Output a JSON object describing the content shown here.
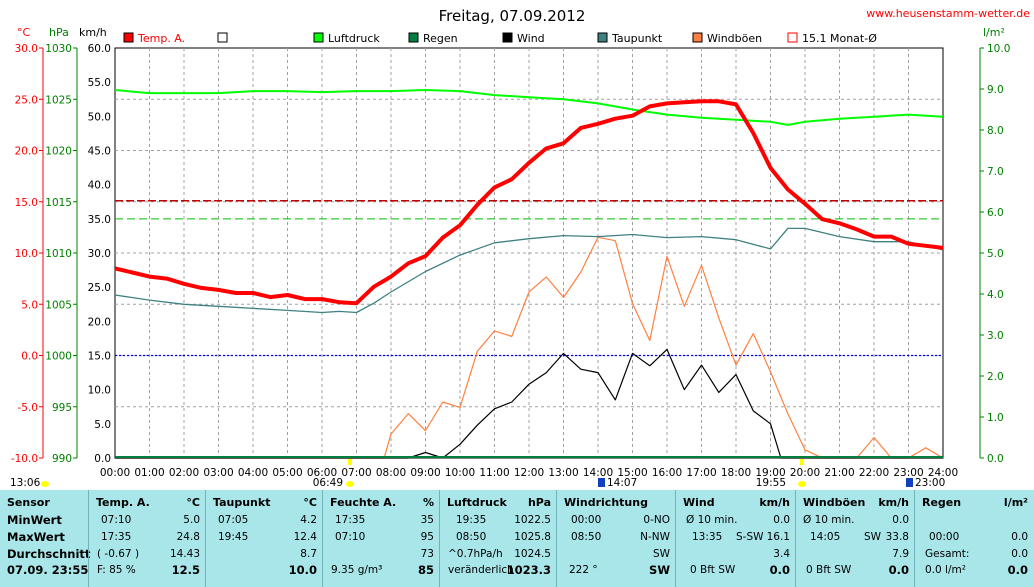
{
  "title": "Freitag, 07.09.2012",
  "website": "www.heusenstamm-wetter.de",
  "axis_units": {
    "left1": "°C",
    "left2": "hPa",
    "left3": "km/h",
    "right": "l/m²"
  },
  "legend": [
    {
      "label": "Temp. A.",
      "color": "#ff0000"
    },
    {
      "label": "",
      "color": "#ffffff"
    },
    {
      "label": "Luftdruck",
      "color": "#00ff00"
    },
    {
      "label": "Regen",
      "color": "#008040"
    },
    {
      "label": "Wind",
      "color": "#000000"
    },
    {
      "label": "Taupunkt",
      "color": "#408080"
    },
    {
      "label": "Windböen",
      "color": "#ff8040"
    },
    {
      "label": "15.1 Monat-Ø",
      "color": "#ff0000"
    }
  ],
  "sun_events": {
    "sunrise_left": "13:06",
    "sunrise": "06:49",
    "max_temp": "14:07",
    "sunset": "19:55",
    "end": "23:00"
  },
  "chart_data": {
    "type": "line",
    "title": "Freitag, 07.09.2012",
    "x_ticks": [
      "00:00",
      "01:00",
      "02:00",
      "03:00",
      "04:00",
      "05:00",
      "06:00",
      "07:00",
      "08:00",
      "09:00",
      "10:00",
      "11:00",
      "12:00",
      "13:00",
      "14:00",
      "15:00",
      "16:00",
      "17:00",
      "18:00",
      "19:00",
      "20:00",
      "21:00",
      "22:00",
      "23:00",
      "24:00"
    ],
    "temp_ticks": [
      "30.0",
      "25.0",
      "20.0",
      "15.0",
      "10.0",
      "5.0",
      "0.0",
      "-5.0",
      "-10.0"
    ],
    "pressure_ticks": [
      "1030",
      "1025",
      "1020",
      "1015",
      "1010",
      "1005",
      "1000",
      "995",
      "990"
    ],
    "wind_ticks": [
      "60.0",
      "55.0",
      "50.0",
      "45.0",
      "40.0",
      "35.0",
      "30.0",
      "25.0",
      "20.0",
      "15.0",
      "10.0",
      "5.0",
      "0.0"
    ],
    "rain_ticks": [
      "10.0",
      "9.0",
      "8.0",
      "7.0",
      "6.0",
      "5.0",
      "4.0",
      "3.0",
      "2.0",
      "1.0",
      "0.0"
    ],
    "ylim_temp": [
      -10,
      30
    ],
    "ylim_pressure": [
      990,
      1030
    ],
    "ylim_wind": [
      0,
      60
    ],
    "ylim_rain": [
      0,
      10
    ],
    "monthly_avg_temp": 15.1,
    "series": [
      {
        "name": "Temp. A.",
        "color": "#ff0000",
        "axis": "temp",
        "x": [
          0,
          0.5,
          1,
          1.5,
          2,
          2.5,
          3,
          3.5,
          4,
          4.5,
          5,
          5.5,
          6,
          6.5,
          7,
          7.5,
          8,
          8.5,
          9,
          9.5,
          10,
          10.5,
          11,
          11.5,
          12,
          12.5,
          13,
          13.5,
          14,
          14.5,
          15,
          15.5,
          16,
          16.5,
          17,
          17.5,
          18,
          18.5,
          19,
          19.5,
          20,
          20.5,
          21,
          21.5,
          22,
          22.5,
          23,
          23.5,
          24
        ],
        "y": [
          8.5,
          8.1,
          7.7,
          7.5,
          7.0,
          6.6,
          6.4,
          6.1,
          6.1,
          5.7,
          5.9,
          5.5,
          5.5,
          5.2,
          5.1,
          6.7,
          7.7,
          9.0,
          9.7,
          11.5,
          12.7,
          14.7,
          16.4,
          17.2,
          18.8,
          20.2,
          20.7,
          22.2,
          22.6,
          23.1,
          23.4,
          24.3,
          24.6,
          24.7,
          24.8,
          24.8,
          24.5,
          21.7,
          18.3,
          16.2,
          14.8,
          13.3,
          12.9,
          12.3,
          11.6,
          11.6,
          10.9,
          10.7,
          10.5
        ]
      },
      {
        "name": "Taupunkt",
        "color": "#408080",
        "axis": "temp",
        "x": [
          0,
          1,
          2,
          3,
          4,
          5,
          6,
          6.5,
          7,
          7.5,
          8,
          9,
          10,
          11,
          12,
          13,
          14,
          15,
          16,
          17,
          18,
          19,
          19.5,
          20,
          21,
          22,
          23,
          24
        ],
        "y": [
          5.9,
          5.4,
          5.0,
          4.8,
          4.6,
          4.4,
          4.2,
          4.3,
          4.2,
          5.1,
          6.2,
          8.2,
          9.8,
          11.0,
          11.4,
          11.7,
          11.6,
          11.8,
          11.5,
          11.6,
          11.3,
          10.4,
          12.4,
          12.4,
          11.6,
          11.1,
          11.1,
          10.3
        ]
      },
      {
        "name": "Luftdruck",
        "color": "#00ff00",
        "axis": "pressure",
        "x": [
          0,
          1,
          2,
          3,
          4,
          5,
          6,
          7,
          8,
          9,
          10,
          11,
          12,
          13,
          14,
          15,
          16,
          17,
          18,
          19,
          19.5,
          20,
          21,
          22,
          23,
          24
        ],
        "y": [
          1025.9,
          1025.6,
          1025.6,
          1025.6,
          1025.8,
          1025.8,
          1025.7,
          1025.8,
          1025.8,
          1025.9,
          1025.8,
          1025.4,
          1025.2,
          1025.0,
          1024.6,
          1024.0,
          1023.5,
          1023.2,
          1023.0,
          1022.8,
          1022.5,
          1022.8,
          1023.1,
          1023.3,
          1023.5,
          1023.3
        ]
      },
      {
        "name": "Wind",
        "color": "#000000",
        "axis": "wind",
        "x": [
          0,
          7.8,
          8.5,
          9,
          9.5,
          10,
          10.5,
          11,
          11.5,
          12,
          12.5,
          13,
          13.5,
          14,
          14.5,
          15,
          15.5,
          16,
          16.5,
          17,
          17.5,
          18,
          18.5,
          19,
          19.3,
          24
        ],
        "y": [
          0,
          0,
          0,
          0.8,
          0,
          2.0,
          4.8,
          7.2,
          8.2,
          10.8,
          12.5,
          15.3,
          13.0,
          12.5,
          8.5,
          15.3,
          13.5,
          15.9,
          10.0,
          13.6,
          9.6,
          12.2,
          6.9,
          5.0,
          0,
          0
        ]
      },
      {
        "name": "Windböen",
        "color": "#ff8040",
        "axis": "wind",
        "x": [
          0,
          7.8,
          8.0,
          8.5,
          9.0,
          9.5,
          10.0,
          10.5,
          11.0,
          11.5,
          12.0,
          12.5,
          13.0,
          13.5,
          14.0,
          14.5,
          15.0,
          15.5,
          16.0,
          16.5,
          17.0,
          17.5,
          18.0,
          18.5,
          19.0,
          19.5,
          20.0,
          20.5,
          21.0,
          21.5,
          22.0,
          22.5,
          23.0,
          23.5,
          24.0
        ],
        "y": [
          0,
          0,
          3.5,
          6.5,
          4.0,
          8.2,
          7.4,
          15.6,
          18.6,
          17.8,
          24.3,
          26.5,
          23.5,
          27.2,
          32.3,
          31.8,
          22.6,
          17.2,
          29.5,
          22.2,
          28.2,
          20.5,
          13.6,
          18.2,
          12.6,
          6.5,
          1.2,
          0,
          0,
          0,
          3.0,
          0,
          0,
          1.5,
          0
        ]
      }
    ]
  },
  "table": {
    "row_labels": {
      "header": "Sensor",
      "min": "MinWert",
      "max": "MaxWert",
      "avg": "Durchschnitt",
      "now": "07.09.  23:55"
    },
    "temp": {
      "name": "Temp. A.",
      "unit": "°C",
      "min_time": "07:10",
      "min_val": "5.0",
      "max_time": "17:35",
      "max_val": "24.8",
      "avg_note": "( -0.67 )",
      "avg_val": "14.43",
      "now_note": "F: 85 %",
      "now_val": "12.5"
    },
    "dew": {
      "name": "Taupunkt",
      "unit": "°C",
      "min_time": "07:05",
      "min_val": "4.2",
      "max_time": "19:45",
      "max_val": "12.4",
      "avg_val": "8.7",
      "now_val": "10.0"
    },
    "hum": {
      "name": "Feuchte A.",
      "unit": "%",
      "min_time": "17:35",
      "min_val": "35",
      "max_time": "07:10",
      "max_val": "95",
      "avg_val": "73",
      "now_note": "9.35 g/m³",
      "now_val": "85"
    },
    "press": {
      "name": "Luftdruck",
      "unit": "hPa",
      "min_time": "19:35",
      "min_val": "1022.5",
      "max_time": "08:50",
      "max_val": "1025.8",
      "avg_note": "^0.7hPa/h",
      "avg_val": "1024.5",
      "now_note": "veränderlich",
      "now_val": "1023.3"
    },
    "wdir": {
      "name": "Windrichtung",
      "min_time": "00:00",
      "min_val": "0-NO",
      "max_time": "08:50",
      "max_val": "N-NW",
      "avg_val": "SW",
      "now_note": "222 °",
      "now_val": "SW"
    },
    "wind": {
      "name": "Wind",
      "unit": "km/h",
      "min_time": "Ø 10 min.",
      "min_val": "0.0",
      "max_time": "13:35",
      "max_dir": "S-SW",
      "max_val": "16.1",
      "avg_val": "3.4",
      "now_note": "0 Bft SW",
      "now_val": "0.0"
    },
    "gust": {
      "name": "Windböen",
      "unit": "km/h",
      "min_time": "Ø 10 min.",
      "min_val": "0.0",
      "max_time": "14:05",
      "max_dir": "SW",
      "max_val": "33.8",
      "avg_val": "7.9",
      "now_note": "0 Bft SW",
      "now_val": "0.0"
    },
    "rain": {
      "name": "Regen",
      "unit": "l/m²",
      "max_time": "00:00",
      "max_val": "0.0",
      "avg_note": "Gesamt:",
      "avg_val": "0.0",
      "now_note": "0.0 l/m²",
      "now_val": "0.0"
    }
  }
}
